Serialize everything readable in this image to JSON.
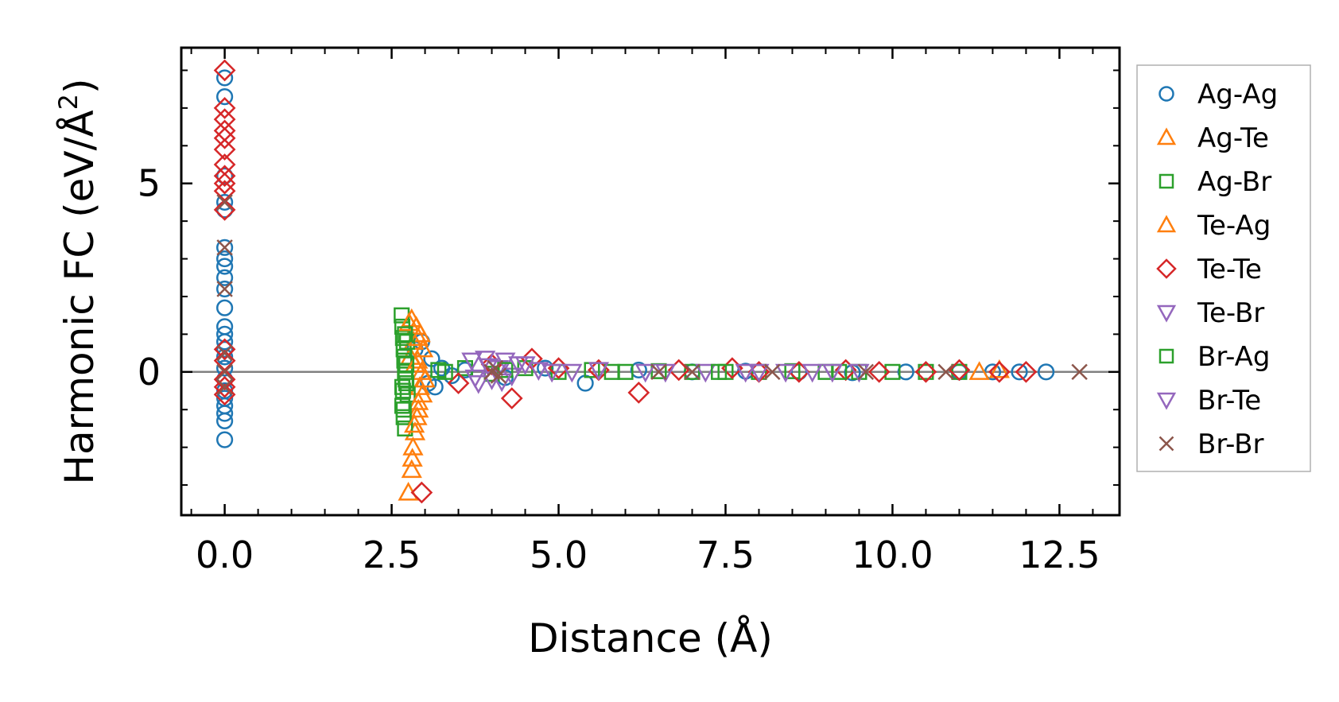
{
  "chart_data": {
    "type": "scatter",
    "title": "",
    "xlabel": "Distance (Å)",
    "ylabel_prefix": "Harmonic FC (eV/Å",
    "ylabel_sup": "2",
    "ylabel_suffix": ")",
    "xlim": [
      -0.65,
      13.4
    ],
    "ylim": [
      -3.8,
      8.6
    ],
    "xticks": [
      0.0,
      2.5,
      5.0,
      7.5,
      10.0,
      12.5
    ],
    "xtick_labels": [
      "0.0",
      "2.5",
      "5.0",
      "7.5",
      "10.0",
      "12.5"
    ],
    "yticks": [
      0,
      5
    ],
    "ytick_labels": [
      "0",
      "5"
    ],
    "hline": 0,
    "legend_position": "outside-right",
    "series": [
      {
        "name": "Ag-Ag",
        "marker": "circle",
        "color": "#1f77b4",
        "x": [
          0,
          0,
          0,
          0,
          0,
          0,
          0,
          0,
          0,
          0,
          0,
          0,
          0,
          0,
          0,
          0,
          0,
          0,
          0,
          0,
          0,
          0,
          0,
          0,
          2.85,
          2.95,
          3.05,
          3.1,
          3.15,
          3.25,
          3.4,
          3.6,
          4.2,
          4.8,
          5.4,
          6.2,
          7.0,
          7.8,
          8.6,
          9.4,
          10.2,
          11.0,
          11.5,
          11.9,
          12.3
        ],
        "y": [
          7.8,
          7.3,
          5.2,
          4.5,
          4.3,
          3.3,
          3.0,
          2.8,
          2.5,
          2.2,
          1.7,
          1.2,
          0.8,
          0.4,
          0.1,
          -0.2,
          -0.5,
          -0.7,
          -1.1,
          -1.3,
          -1.8,
          0.6,
          1.0,
          -0.9,
          0.6,
          0.8,
          -0.3,
          0.35,
          -0.4,
          0.1,
          -0.1,
          0.05,
          -0.15,
          0.1,
          -0.3,
          0.05,
          0.0,
          0.02,
          0.0,
          -0.02,
          0.0,
          0.0,
          0.0,
          0.0,
          0.0
        ]
      },
      {
        "name": "Ag-Te",
        "marker": "triangle-up",
        "color": "#ff7f0e",
        "x": [
          2.75,
          2.8,
          2.82,
          2.85,
          2.88,
          2.9,
          2.92,
          2.95,
          2.78,
          2.83,
          2.87,
          2.93,
          2.97,
          2.8,
          2.85,
          2.9,
          3.0,
          11.3,
          11.6
        ],
        "y": [
          -3.2,
          -2.6,
          -2.0,
          -1.6,
          -1.2,
          -0.8,
          -0.4,
          0.0,
          0.4,
          0.8,
          1.2,
          1.0,
          0.6,
          1.4,
          0.2,
          -1.0,
          -0.2,
          0.0,
          0.05
        ]
      },
      {
        "name": "Ag-Br",
        "marker": "square",
        "color": "#2ca02c",
        "x": [
          2.65,
          2.66,
          2.67,
          2.68,
          2.69,
          2.7,
          2.72,
          2.74,
          2.66,
          2.68,
          2.7,
          2.73,
          2.67,
          2.69,
          2.71,
          3.2,
          3.6,
          4.0,
          4.5,
          5.0,
          5.5,
          6.0,
          6.5,
          7.0,
          7.5,
          8.0,
          8.5,
          9.0,
          9.5,
          10.0,
          10.5,
          11.0
        ],
        "y": [
          1.5,
          1.2,
          0.9,
          0.6,
          0.3,
          0.0,
          -0.3,
          -0.6,
          -0.9,
          -1.2,
          -1.5,
          0.8,
          -0.5,
          0.4,
          -0.2,
          0.05,
          0.1,
          -0.05,
          0.1,
          0.0,
          0.05,
          0.0,
          0.02,
          0.0,
          0.0,
          0.0,
          0.02,
          0.0,
          0.0,
          0.0,
          0.0,
          0.0
        ]
      },
      {
        "name": "Te-Ag",
        "marker": "triangle-up",
        "color": "#ff7f0e",
        "x": [
          2.76,
          2.84,
          2.9,
          2.96,
          2.81,
          2.89
        ],
        "y": [
          1.3,
          -1.4,
          0.9,
          -0.6,
          -2.3,
          0.3
        ]
      },
      {
        "name": "Te-Te",
        "marker": "diamond",
        "color": "#d62728",
        "x": [
          0,
          0,
          0,
          0,
          0,
          0,
          0,
          0,
          0,
          0,
          0,
          0,
          0,
          0,
          0,
          0,
          2.95,
          3.5,
          4.0,
          4.3,
          4.6,
          5.0,
          5.6,
          6.2,
          6.8,
          7.6,
          8.0,
          8.6,
          9.3,
          9.8,
          10.5,
          11.0,
          11.6,
          12.0
        ],
        "y": [
          8.0,
          7.0,
          6.7,
          6.4,
          6.2,
          5.9,
          5.5,
          5.2,
          5.0,
          4.8,
          4.3,
          0.6,
          0.3,
          -0.2,
          -0.4,
          -0.6,
          -3.2,
          -0.3,
          0.2,
          -0.7,
          0.35,
          0.1,
          0.05,
          -0.55,
          0.05,
          0.1,
          0.0,
          0.0,
          0.05,
          0.0,
          0.0,
          0.05,
          0.0,
          0.0
        ]
      },
      {
        "name": "Te-Br",
        "marker": "triangle-down",
        "color": "#9467bd",
        "x": [
          3.7,
          3.8,
          3.9,
          4.0,
          4.1,
          4.2,
          4.3,
          4.5,
          4.7,
          5.2,
          6.3,
          7.2,
          8.0,
          8.8,
          9.5
        ],
        "y": [
          0.3,
          -0.3,
          0.35,
          -0.2,
          0.1,
          0.3,
          -0.1,
          0.2,
          0.05,
          0.0,
          0.0,
          0.0,
          0.0,
          0.0,
          0.0
        ]
      },
      {
        "name": "Br-Ag",
        "marker": "square",
        "color": "#2ca02c",
        "x": [
          2.7,
          2.68,
          2.72,
          2.66,
          3.3,
          4.2,
          5.8,
          7.4,
          9.2
        ],
        "y": [
          1.0,
          -1.0,
          0.2,
          -0.4,
          0.0,
          0.05,
          0.0,
          0.0,
          0.0
        ]
      },
      {
        "name": "Br-Te",
        "marker": "triangle-down",
        "color": "#9467bd",
        "x": [
          3.75,
          3.95,
          4.15,
          4.4,
          4.9,
          5.6,
          6.6,
          7.8,
          8.4,
          9.1
        ],
        "y": [
          -0.15,
          0.15,
          -0.25,
          0.2,
          0.0,
          0.05,
          0.0,
          0.0,
          0.0,
          0.0
        ]
      },
      {
        "name": "Br-Br",
        "marker": "x",
        "color": "#8c564b",
        "x": [
          0,
          0,
          0,
          0,
          0,
          0,
          4.0,
          4.05,
          4.1,
          6.5,
          7.0,
          8.2,
          9.6,
          10.8,
          12.8
        ],
        "y": [
          4.5,
          3.3,
          2.2,
          0.5,
          0.0,
          -0.4,
          0.0,
          0.1,
          -0.1,
          0.0,
          0.0,
          0.0,
          0.0,
          0.0,
          0.0
        ]
      }
    ]
  }
}
